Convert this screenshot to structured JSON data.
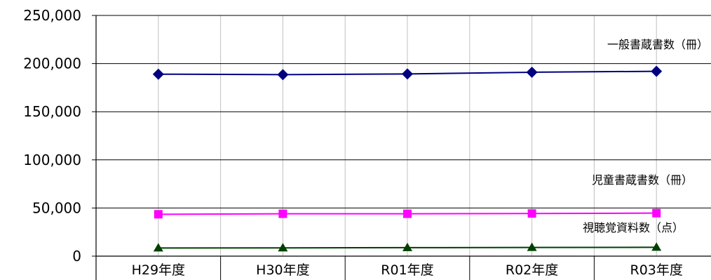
{
  "chart_data": {
    "type": "line",
    "categories": [
      "H29年度",
      "H30年度",
      "R01年度",
      "R02年度",
      "R03年度"
    ],
    "ylim": [
      0,
      250000
    ],
    "yticks": [
      0,
      50000,
      100000,
      150000,
      200000,
      250000
    ],
    "ytick_labels": [
      "0",
      "50,000",
      "100,000",
      "150,000",
      "200,000",
      "250,000"
    ],
    "grid": true,
    "series": [
      {
        "name": "一般書蔵書数（冊）",
        "values": [
          189000,
          188500,
          189200,
          191000,
          192000
        ],
        "color": "#000080",
        "marker": "diamond"
      },
      {
        "name": "児童書蔵書数（冊）",
        "values": [
          43500,
          44000,
          44000,
          44300,
          44700
        ],
        "color": "#ff00ff",
        "marker": "square"
      },
      {
        "name": "視聴覚資料数（点）",
        "values": [
          8500,
          8600,
          8800,
          9000,
          9200
        ],
        "color": "#004000",
        "marker": "triangle"
      }
    ]
  }
}
